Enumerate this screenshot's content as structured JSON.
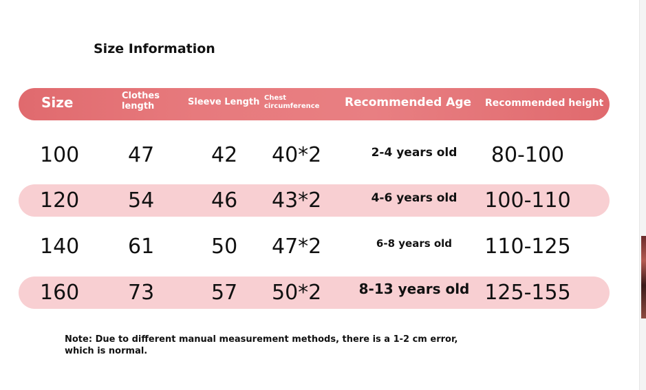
{
  "title": "Size Information",
  "header": {
    "size": "Size",
    "clothes_length": [
      "Clothes",
      "length"
    ],
    "sleeve_length": "Sleeve Length",
    "chest": [
      "Chest",
      "circumference"
    ],
    "recommended_age": "Recommended Age",
    "recommended_height": "Recommended height"
  },
  "rows": [
    {
      "size": "100",
      "clothes_length": "47",
      "sleeve_length": "42",
      "chest": "40*2",
      "age": "2-4 years old",
      "height": "80-100"
    },
    {
      "size": "120",
      "clothes_length": "54",
      "sleeve_length": "46",
      "chest": "43*2",
      "age": "4-6 years old",
      "height": "100-110"
    },
    {
      "size": "140",
      "clothes_length": "61",
      "sleeve_length": "50",
      "chest": "47*2",
      "age": "6-8 years old",
      "height": "110-125"
    },
    {
      "size": "160",
      "clothes_length": "73",
      "sleeve_length": "57",
      "chest": "50*2",
      "age": "8-13 years old",
      "height": "125-155"
    }
  ],
  "note": "Note: Due to different manual measurement methods, there is a 1-2 cm error, which is normal.",
  "colors": {
    "header_bg": "#e06a6e",
    "row_shade": "#f8cfd2",
    "text": "#111111"
  }
}
